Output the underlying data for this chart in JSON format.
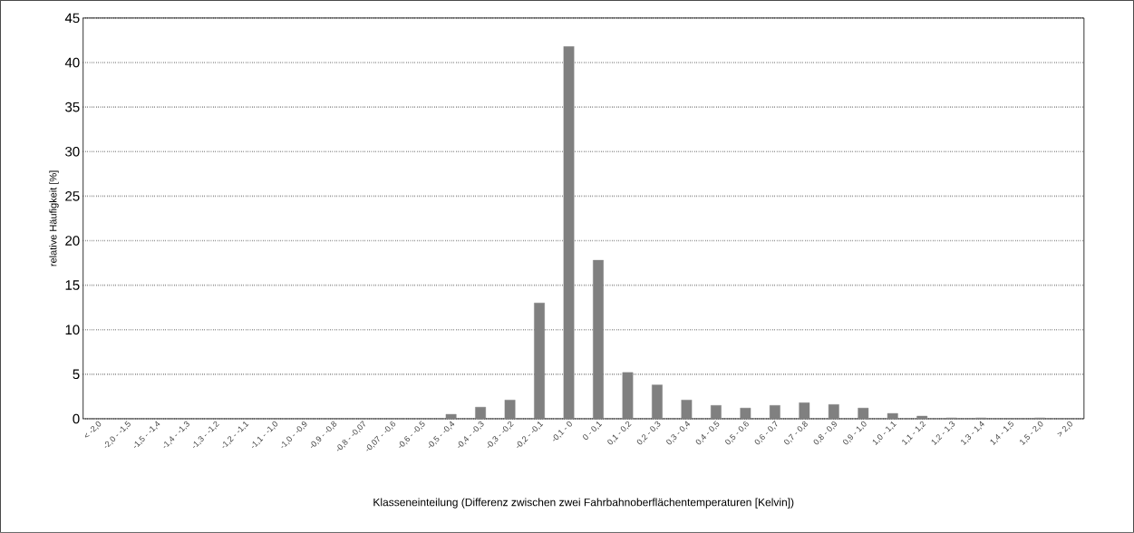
{
  "chart_data": {
    "type": "bar",
    "xlabel": "Klasseneinteilung (Differenz zwischen zwei Fahrbahnoberflächentemperaturen [Kelvin])",
    "ylabel": "relative Häufigkeit [%]",
    "categories": [
      "< -2,0",
      "-2,0 - -1,5",
      "-1,5 - -1,4",
      "-1,4 - -1,3",
      "-1,3 - -1,2",
      "-1,2 - -1,1",
      "-1,1 - -1,0",
      "-1,0 - -0,9",
      "-0,9 - -0,8",
      "-0,8 - -0,07",
      "-0,07 - -0,6",
      "-0,6 - -0,5",
      "-0,5 - -0,4",
      "-0,4 - -0,3",
      "-0,3 - -0,2",
      "-0,2 - -0,1",
      "-0,1 - 0",
      "0 - 0,1",
      "0,1 - 0,2",
      "0,2 - 0,3",
      "0,3 - 0,4",
      "0,4 - 0,5",
      "0,5 - 0,6",
      "0,6 - 0,7",
      "0,7 - 0,8",
      "0,8 - 0,9",
      "0,9 - 1,0",
      "1,0 - 1,1",
      "1,1 - 1,2",
      "1,2 - 1,3",
      "1,3 - 1,4",
      "1,4 - 1,5",
      "1,5 - 2,0",
      "> 2,0"
    ],
    "values": [
      0,
      0,
      0,
      0,
      0,
      0,
      0,
      0,
      0,
      0,
      0,
      0,
      0.5,
      1.3,
      2.1,
      13.0,
      41.8,
      17.8,
      5.2,
      3.8,
      2.1,
      1.5,
      1.2,
      1.5,
      1.8,
      1.6,
      1.2,
      0.6,
      0.3,
      0.1,
      0.1,
      0,
      0.1,
      0
    ],
    "color": "#808080",
    "ylim": [
      0,
      45
    ],
    "yticks": [
      0,
      5,
      10,
      15,
      20,
      25,
      30,
      35,
      40,
      45
    ],
    "grid": "y"
  }
}
